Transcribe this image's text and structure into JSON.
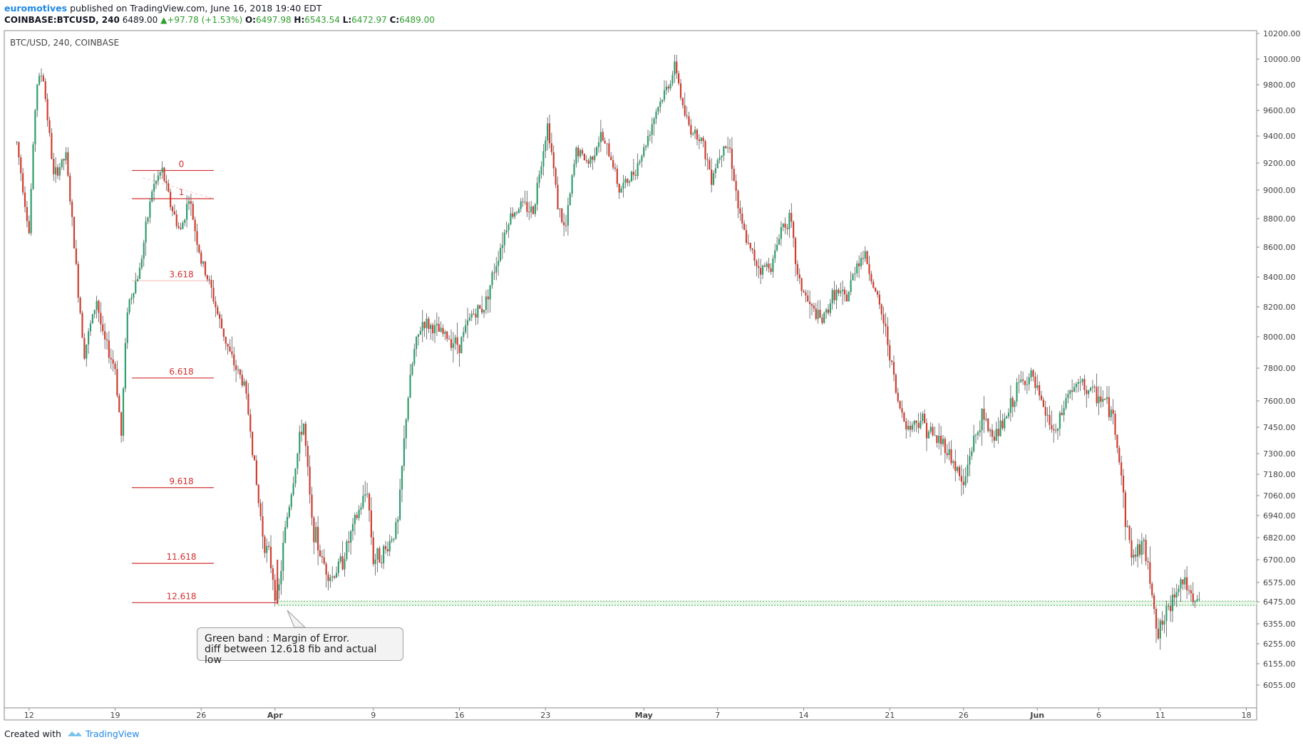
{
  "header": {
    "author": "euromotives",
    "published": "published on TradingView.com, June 16, 2018 19:40 EDT",
    "symbol": "COINBASE:BTCUSD, 240",
    "last": "6489.00",
    "change": "+97.78 (+1.53%)",
    "o_label": "O:",
    "o_value": "6497.98",
    "h_label": "H:",
    "h_value": "6543.54",
    "l_label": "L:",
    "l_value": "6472.97",
    "c_label": "C:",
    "c_value": "6489.00"
  },
  "pane_title": "BTC/USD, 240, COINBASE",
  "note": {
    "line1": "Green band : Margin of Error.",
    "line2": "diff between 12.618 fib and actual low"
  },
  "footer": {
    "created": "Created with",
    "brand": "TradingView"
  },
  "colors": {
    "up": "#2e9e6e",
    "down": "#d23b2f",
    "fib": "#d32f2f",
    "band": "#4caf50"
  },
  "chart_data": {
    "type": "candlestick",
    "title": "BTC/USD, 240, COINBASE",
    "ylim": [
      5980,
      10250
    ],
    "yticks": [
      "10200.00",
      "10000.00",
      "9800.00",
      "9600.00",
      "9400.00",
      "9200.00",
      "9000.00",
      "8800.00",
      "8600.00",
      "8400.00",
      "8200.00",
      "8000.00",
      "7800.00",
      "7600.00",
      "7450.00",
      "7300.00",
      "7180.00",
      "7060.00",
      "6940.00",
      "6820.00",
      "6700.00",
      "6575.00",
      "6475.00",
      "6355.00",
      "6255.00",
      "6155.00",
      "6055.00"
    ],
    "ytick_values": [
      10200,
      10000,
      9800,
      9600,
      9400,
      9200,
      9000,
      8800,
      8600,
      8400,
      8200,
      8000,
      7800,
      7600,
      7450,
      7300,
      7180,
      7060,
      6940,
      6820,
      6700,
      6575,
      6475,
      6355,
      6255,
      6155,
      6055
    ],
    "x_day_range": [
      0,
      97
    ],
    "xticks": [
      {
        "label": "12",
        "day": 1
      },
      {
        "label": "19",
        "day": 8
      },
      {
        "label": "26",
        "day": 15
      },
      {
        "label": "Apr",
        "day": 21,
        "bold": true
      },
      {
        "label": "9",
        "day": 29
      },
      {
        "label": "16",
        "day": 36
      },
      {
        "label": "23",
        "day": 43
      },
      {
        "label": "May",
        "day": 51,
        "bold": true
      },
      {
        "label": "7",
        "day": 57
      },
      {
        "label": "14",
        "day": 64
      },
      {
        "label": "21",
        "day": 71
      },
      {
        "label": "26",
        "day": 77
      },
      {
        "label": "Jun",
        "day": 83,
        "bold": true
      },
      {
        "label": "6",
        "day": 88
      },
      {
        "label": "11",
        "day": 93
      },
      {
        "label": "18",
        "day": 100
      }
    ],
    "price_path": [
      [
        0,
        9350
      ],
      [
        1,
        8700
      ],
      [
        1.6,
        9800
      ],
      [
        2.1,
        9900
      ],
      [
        3,
        9100
      ],
      [
        4,
        9250
      ],
      [
        5,
        8300
      ],
      [
        5.5,
        7900
      ],
      [
        6.5,
        8250
      ],
      [
        7,
        8000
      ],
      [
        8,
        7800
      ],
      [
        8.5,
        7400
      ],
      [
        9,
        8200
      ],
      [
        10,
        8450
      ],
      [
        11,
        9000
      ],
      [
        11.8,
        9150
      ],
      [
        12.5,
        8900
      ],
      [
        13.3,
        8700
      ],
      [
        14,
        8950
      ],
      [
        15,
        8500
      ],
      [
        15.7,
        8350
      ],
      [
        16.5,
        8100
      ],
      [
        17.5,
        7850
      ],
      [
        18.5,
        7700
      ],
      [
        19,
        7450
      ],
      [
        19.6,
        7050
      ],
      [
        20.1,
        6800
      ],
      [
        20.6,
        6700
      ],
      [
        21.2,
        6465
      ],
      [
        21.8,
        6850
      ],
      [
        22.6,
        7200
      ],
      [
        23.3,
        7500
      ],
      [
        24,
        6900
      ],
      [
        24.8,
        6700
      ],
      [
        25.6,
        6600
      ],
      [
        26.5,
        6700
      ],
      [
        27.5,
        6900
      ],
      [
        28.5,
        7100
      ],
      [
        29,
        6700
      ],
      [
        30,
        6750
      ],
      [
        31,
        6900
      ],
      [
        31.7,
        7550
      ],
      [
        32.3,
        7900
      ],
      [
        33,
        8100
      ],
      [
        34,
        8050
      ],
      [
        35,
        8000
      ],
      [
        36,
        7950
      ],
      [
        37,
        8150
      ],
      [
        38,
        8200
      ],
      [
        39,
        8500
      ],
      [
        40,
        8800
      ],
      [
        41,
        8900
      ],
      [
        42,
        8850
      ],
      [
        42.8,
        9300
      ],
      [
        43.2,
        9500
      ],
      [
        44,
        8900
      ],
      [
        44.6,
        8700
      ],
      [
        45.5,
        9300
      ],
      [
        46.5,
        9200
      ],
      [
        47.5,
        9400
      ],
      [
        48.5,
        9200
      ],
      [
        49,
        9000
      ],
      [
        50,
        9100
      ],
      [
        51,
        9300
      ],
      [
        52,
        9600
      ],
      [
        53,
        9800
      ],
      [
        53.6,
        9950
      ],
      [
        54.2,
        9600
      ],
      [
        54.8,
        9450
      ],
      [
        55.6,
        9400
      ],
      [
        56.5,
        9100
      ],
      [
        57.5,
        9350
      ],
      [
        58,
        9300
      ],
      [
        58.8,
        8800
      ],
      [
        59.5,
        8600
      ],
      [
        60.5,
        8450
      ],
      [
        61.5,
        8500
      ],
      [
        62.2,
        8750
      ],
      [
        62.9,
        8800
      ],
      [
        63.5,
        8400
      ],
      [
        64.5,
        8200
      ],
      [
        65.5,
        8100
      ],
      [
        66.5,
        8300
      ],
      [
        67.5,
        8250
      ],
      [
        68.3,
        8500
      ],
      [
        69,
        8550
      ],
      [
        69.8,
        8300
      ],
      [
        70.5,
        8100
      ],
      [
        71,
        7900
      ],
      [
        71.6,
        7600
      ],
      [
        72.5,
        7450
      ],
      [
        73.5,
        7500
      ],
      [
        74.5,
        7400
      ],
      [
        75.5,
        7350
      ],
      [
        76.5,
        7200
      ],
      [
        77,
        7100
      ],
      [
        77.5,
        7300
      ],
      [
        78.5,
        7500
      ],
      [
        79.5,
        7400
      ],
      [
        80.5,
        7500
      ],
      [
        81.5,
        7700
      ],
      [
        82.5,
        7750
      ],
      [
        83.5,
        7550
      ],
      [
        84.5,
        7400
      ],
      [
        85.5,
        7650
      ],
      [
        86.5,
        7700
      ],
      [
        87.5,
        7650
      ],
      [
        88.5,
        7600
      ],
      [
        89.2,
        7500
      ],
      [
        89.8,
        7200
      ],
      [
        90.2,
        6900
      ],
      [
        90.8,
        6700
      ],
      [
        91.5,
        6800
      ],
      [
        92.2,
        6600
      ],
      [
        92.8,
        6300
      ],
      [
        93.5,
        6400
      ],
      [
        94.3,
        6550
      ],
      [
        95,
        6600
      ],
      [
        95.6,
        6450
      ],
      [
        96.3,
        6489
      ]
    ],
    "fib_levels": [
      {
        "label": "0",
        "price": 9145
      },
      {
        "label": "1",
        "price": 8940
      },
      {
        "label": "3.618",
        "price": 8375,
        "faded": true
      },
      {
        "label": "6.618",
        "price": 7740
      },
      {
        "label": "9.618",
        "price": 7105
      },
      {
        "label": "11.618",
        "price": 6680
      },
      {
        "label": "12.618",
        "price": 6470
      }
    ],
    "margin_band": [
      6455,
      6478
    ],
    "actual_low": 6462
  }
}
